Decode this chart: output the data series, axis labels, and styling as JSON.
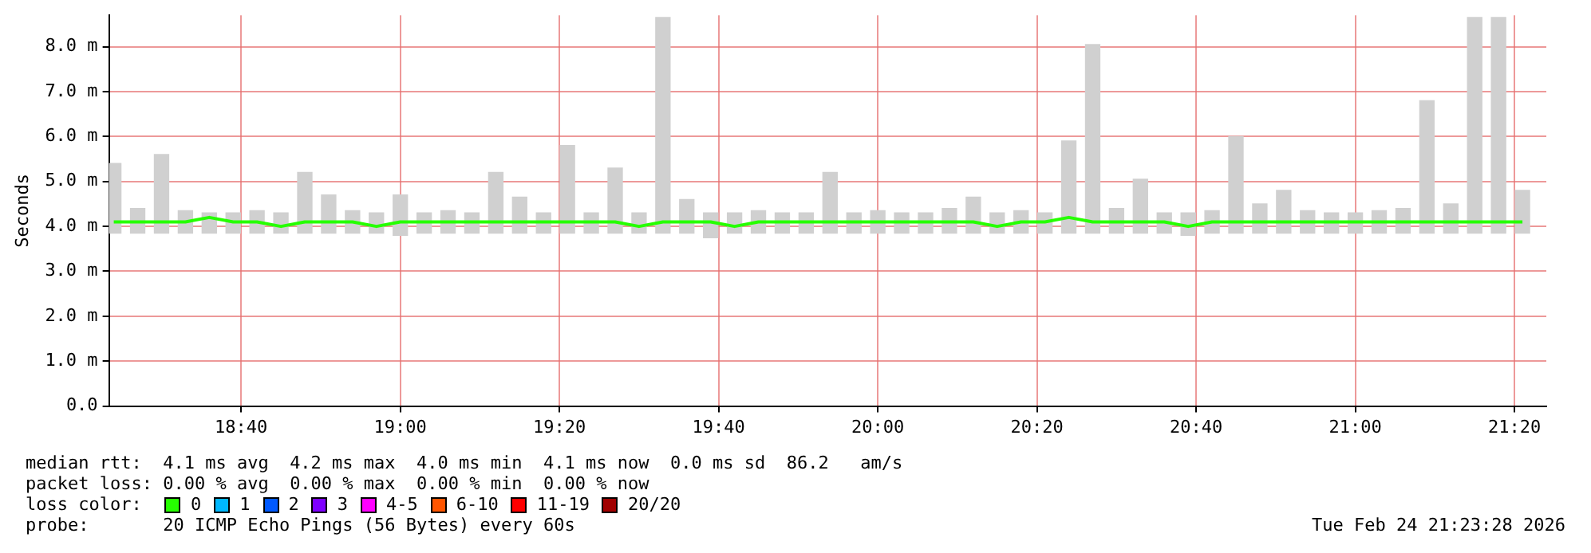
{
  "chart_data": {
    "type": "bar",
    "ylabel": "Seconds",
    "legend_title": "loss color:",
    "legend": "bottom",
    "grid": true,
    "x": [
      18.4,
      18.45,
      18.5,
      18.55,
      18.6,
      18.65,
      18.7,
      18.75,
      18.8,
      18.85,
      18.9,
      18.95,
      19.0,
      19.05,
      19.1,
      19.15,
      19.2,
      19.25,
      19.3,
      19.35,
      19.4,
      19.45,
      19.5,
      19.55,
      19.6,
      19.65,
      19.7,
      19.75,
      19.8,
      19.85,
      19.9,
      19.95,
      20.0,
      20.05,
      20.1,
      20.15,
      20.2,
      20.25,
      20.3,
      20.35,
      20.4,
      20.45,
      20.5,
      20.55,
      20.6,
      20.65,
      20.7,
      20.75,
      20.8,
      20.85,
      20.9,
      20.95,
      21.0,
      21.05,
      21.1,
      21.15,
      21.2,
      21.25,
      21.3,
      21.35
    ],
    "xlim": [
      18.39,
      21.4
    ],
    "xticks": [
      {
        "value": 18.6667,
        "label": "18:40"
      },
      {
        "value": 19,
        "label": "19:00"
      },
      {
        "value": 19.3333,
        "label": "19:20"
      },
      {
        "value": 19.6667,
        "label": "19:40"
      },
      {
        "value": 20,
        "label": "20:00"
      },
      {
        "value": 20.3333,
        "label": "20:20"
      },
      {
        "value": 20.6667,
        "label": "20:40"
      },
      {
        "value": 21,
        "label": "21:00"
      },
      {
        "value": 21.3333,
        "label": "21:20"
      }
    ],
    "ylim": [
      0,
      8.7
    ],
    "yticks": [
      {
        "value": 0,
        "label": "0.0"
      },
      {
        "value": 1,
        "label": "1.0 m"
      },
      {
        "value": 2,
        "label": "2.0 m"
      },
      {
        "value": 3,
        "label": "3.0 m"
      },
      {
        "value": 4,
        "label": "4.0 m"
      },
      {
        "value": 5,
        "label": "5.0 m"
      },
      {
        "value": 6,
        "label": "6.0 m"
      },
      {
        "value": 7,
        "label": "7.0 m"
      },
      {
        "value": 8,
        "label": "8.0 m"
      }
    ],
    "series": [
      {
        "color": "#d0d0d0",
        "base": [
          3.85,
          3.85,
          3.85,
          3.85,
          3.85,
          3.85,
          3.85,
          3.85,
          3.85,
          3.85,
          3.85,
          3.85,
          3.8,
          3.85,
          3.85,
          3.85,
          3.85,
          3.85,
          3.85,
          3.85,
          3.85,
          3.85,
          3.85,
          3.85,
          3.85,
          3.75,
          3.85,
          3.85,
          3.85,
          3.85,
          3.85,
          3.85,
          3.85,
          3.85,
          3.85,
          3.85,
          3.85,
          3.85,
          3.85,
          3.85,
          3.85,
          3.85,
          3.85,
          3.85,
          3.85,
          3.8,
          3.85,
          3.85,
          3.85,
          3.85,
          3.85,
          3.85,
          3.85,
          3.85,
          3.85,
          3.85,
          3.85,
          3.85,
          3.85,
          3.85
        ],
        "values": [
          1.55,
          0.55,
          1.75,
          0.5,
          0.45,
          0.45,
          0.5,
          0.45,
          1.35,
          0.85,
          0.5,
          0.45,
          0.9,
          0.45,
          0.5,
          0.45,
          1.35,
          0.8,
          0.45,
          1.95,
          0.45,
          1.45,
          0.45,
          4.8,
          0.75,
          0.55,
          0.45,
          0.5,
          0.45,
          0.45,
          1.35,
          0.45,
          0.5,
          0.45,
          0.45,
          0.55,
          0.8,
          0.45,
          0.5,
          0.45,
          2.05,
          4.2,
          0.55,
          1.2,
          0.45,
          0.5,
          0.5,
          2.15,
          0.65,
          0.95,
          0.5,
          0.45,
          0.45,
          0.5,
          0.55,
          2.95,
          0.65,
          4.8,
          4.8,
          0.95
        ]
      },
      {
        "type": "line",
        "name": "0",
        "color": "#26ff00",
        "values": [
          4.1,
          4.1,
          4.1,
          4.1,
          4.2,
          4.1,
          4.1,
          4.0,
          4.1,
          4.1,
          4.1,
          4.0,
          4.1,
          4.1,
          4.1,
          4.1,
          4.1,
          4.1,
          4.1,
          4.1,
          4.1,
          4.1,
          4.0,
          4.1,
          4.1,
          4.1,
          4.0,
          4.1,
          4.1,
          4.1,
          4.1,
          4.1,
          4.1,
          4.1,
          4.1,
          4.1,
          4.1,
          4.0,
          4.1,
          4.1,
          4.2,
          4.1,
          4.1,
          4.1,
          4.1,
          4.0,
          4.1,
          4.1,
          4.1,
          4.1,
          4.1,
          4.1,
          4.1,
          4.1,
          4.1,
          4.1,
          4.1,
          4.1,
          4.1,
          4.1
        ]
      },
      {
        "type": "line",
        "name": "1",
        "color": "#00b8ff",
        "values": [
          null,
          null,
          null,
          null,
          null,
          null,
          null,
          null,
          null,
          null,
          null,
          null,
          null,
          null,
          null,
          null,
          null,
          null,
          null,
          null,
          null,
          null,
          null,
          null,
          null,
          null,
          null,
          null,
          null,
          null,
          null,
          null,
          null,
          null,
          null,
          null,
          null,
          null,
          null,
          null,
          null,
          null,
          null,
          null,
          null,
          null,
          null,
          null,
          null,
          null,
          null,
          null,
          null,
          null,
          null,
          null,
          null,
          null,
          null,
          null
        ]
      },
      {
        "type": "line",
        "name": "2",
        "color": "#0059ff",
        "values": [
          null,
          null,
          null,
          null,
          null,
          null,
          null,
          null,
          null,
          null,
          null,
          null,
          null,
          null,
          null,
          null,
          null,
          null,
          null,
          null,
          null,
          null,
          null,
          null,
          null,
          null,
          null,
          null,
          null,
          null,
          null,
          null,
          null,
          null,
          null,
          null,
          null,
          null,
          null,
          null,
          null,
          null,
          null,
          null,
          null,
          null,
          null,
          null,
          null,
          null,
          null,
          null,
          null,
          null,
          null,
          null,
          null,
          null,
          null,
          null
        ]
      },
      {
        "type": "line",
        "name": "3",
        "color": "#7e00ff",
        "values": [
          null,
          null,
          null,
          null,
          null,
          null,
          null,
          null,
          null,
          null,
          null,
          null,
          null,
          null,
          null,
          null,
          null,
          null,
          null,
          null,
          null,
          null,
          null,
          null,
          null,
          null,
          null,
          null,
          null,
          null,
          null,
          null,
          null,
          null,
          null,
          null,
          null,
          null,
          null,
          null,
          null,
          null,
          null,
          null,
          null,
          null,
          null,
          null,
          null,
          null,
          null,
          null,
          null,
          null,
          null,
          null,
          null,
          null,
          null,
          null
        ]
      },
      {
        "type": "line",
        "name": "4-5",
        "color": "#ff00ff",
        "values": [
          null,
          null,
          null,
          null,
          null,
          null,
          null,
          null,
          null,
          null,
          null,
          null,
          null,
          null,
          null,
          null,
          null,
          null,
          null,
          null,
          null,
          null,
          null,
          null,
          null,
          null,
          null,
          null,
          null,
          null,
          null,
          null,
          null,
          null,
          null,
          null,
          null,
          null,
          null,
          null,
          null,
          null,
          null,
          null,
          null,
          null,
          null,
          null,
          null,
          null,
          null,
          null,
          null,
          null,
          null,
          null,
          null,
          null,
          null,
          null
        ]
      },
      {
        "type": "line",
        "name": "6-10",
        "color": "#ff5500",
        "values": [
          null,
          null,
          null,
          null,
          null,
          null,
          null,
          null,
          null,
          null,
          null,
          null,
          null,
          null,
          null,
          null,
          null,
          null,
          null,
          null,
          null,
          null,
          null,
          null,
          null,
          null,
          null,
          null,
          null,
          null,
          null,
          null,
          null,
          null,
          null,
          null,
          null,
          null,
          null,
          null,
          null,
          null,
          null,
          null,
          null,
          null,
          null,
          null,
          null,
          null,
          null,
          null,
          null,
          null,
          null,
          null,
          null,
          null,
          null,
          null
        ]
      },
      {
        "type": "line",
        "name": "11-19",
        "color": "#ff0000",
        "values": [
          null,
          null,
          null,
          null,
          null,
          null,
          null,
          null,
          null,
          null,
          null,
          null,
          null,
          null,
          null,
          null,
          null,
          null,
          null,
          null,
          null,
          null,
          null,
          null,
          null,
          null,
          null,
          null,
          null,
          null,
          null,
          null,
          null,
          null,
          null,
          null,
          null,
          null,
          null,
          null,
          null,
          null,
          null,
          null,
          null,
          null,
          null,
          null,
          null,
          null,
          null,
          null,
          null,
          null,
          null,
          null,
          null,
          null,
          null,
          null
        ]
      },
      {
        "type": "line",
        "name": "20/20",
        "color": "#a10000",
        "values": [
          null,
          null,
          null,
          null,
          null,
          null,
          null,
          null,
          null,
          null,
          null,
          null,
          null,
          null,
          null,
          null,
          null,
          null,
          null,
          null,
          null,
          null,
          null,
          null,
          null,
          null,
          null,
          null,
          null,
          null,
          null,
          null,
          null,
          null,
          null,
          null,
          null,
          null,
          null,
          null,
          null,
          null,
          null,
          null,
          null,
          null,
          null,
          null,
          null,
          null,
          null,
          null,
          null,
          null,
          null,
          null,
          null,
          null,
          null,
          null
        ]
      }
    ],
    "annotations": [
      "median rtt:  4.1 ms avg  4.2 ms max  4.0 ms min  4.1 ms now  0.0 ms sd  86.2   am/s",
      "packet loss: 0.00 % avg  0.00 % max  0.00 % min  0.00 % now",
      "probe:       20 ICMP Echo Pings (56 Bytes) every 60s",
      "Tue Feb 24 21:23:28 2026"
    ]
  }
}
